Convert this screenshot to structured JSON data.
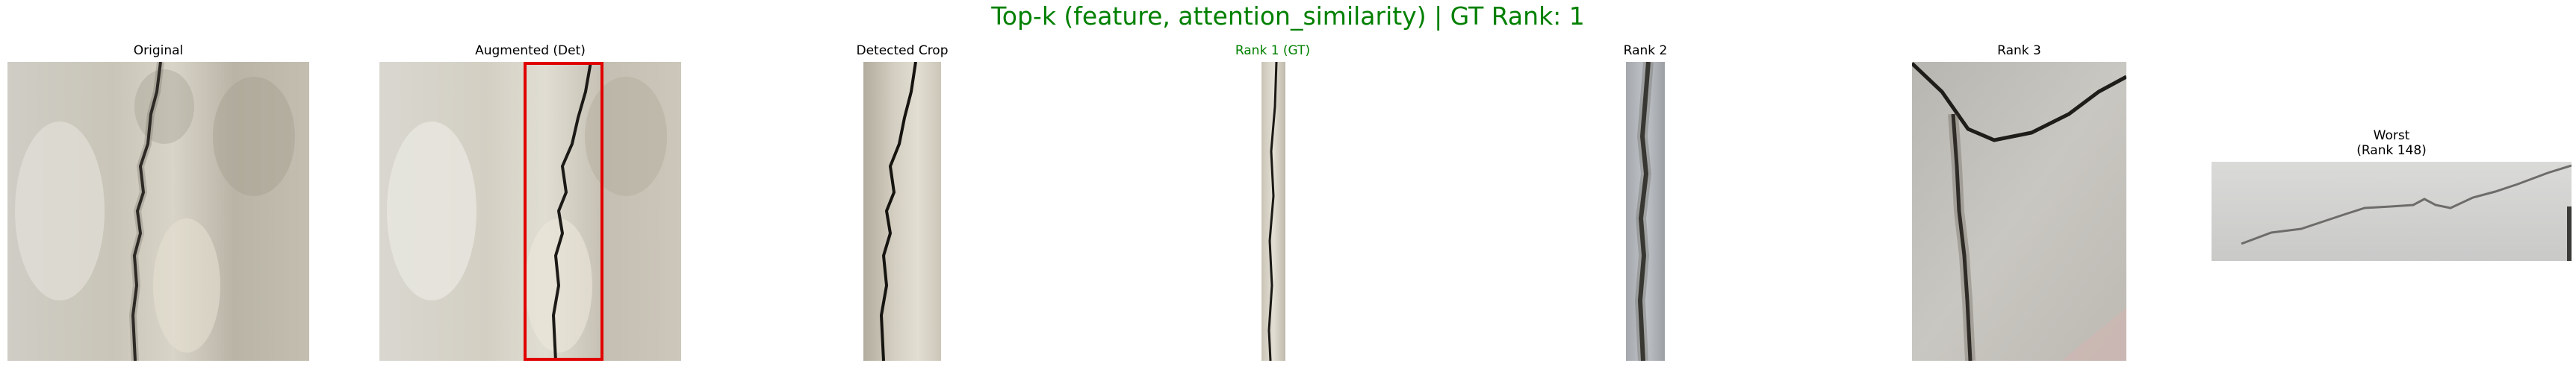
{
  "figure": {
    "title": "Top-k (feature, attention_similarity) | GT Rank: 1",
    "title_color": "#008000"
  },
  "panels": [
    {
      "id": "original",
      "title": "Original"
    },
    {
      "id": "augmented",
      "title": "Augmented (Det)",
      "box_color": "#e00000"
    },
    {
      "id": "crop",
      "title": "Detected Crop"
    },
    {
      "id": "rank1",
      "title": "Rank 1 (GT)",
      "title_color": "#008000"
    },
    {
      "id": "rank2",
      "title": "Rank 2"
    },
    {
      "id": "rank3",
      "title": "Rank 3"
    },
    {
      "id": "worst",
      "title": "Worst",
      "subtitle": "(Rank 148)"
    }
  ]
}
